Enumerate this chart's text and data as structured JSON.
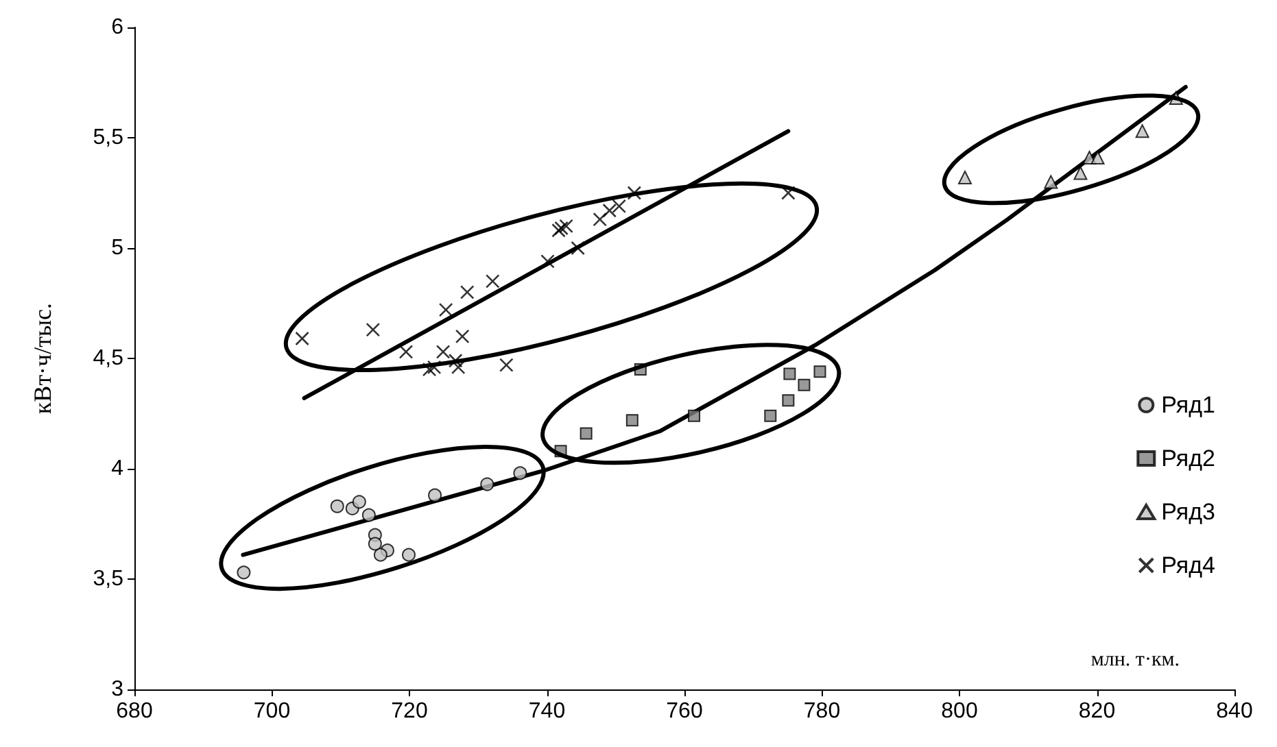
{
  "chart_data": {
    "type": "scatter",
    "xlabel": "млн. т·км.",
    "ylabel": "кВт·ч/тыс.",
    "xlim": [
      680,
      840
    ],
    "xticks": [
      680,
      700,
      720,
      740,
      760,
      780,
      800,
      820,
      840
    ],
    "ylim": [
      3,
      6
    ],
    "yticks": [
      3,
      {
        "value": 3.5,
        "label": "3,5"
      },
      4,
      {
        "value": 4.5,
        "label": "4,5"
      },
      5,
      {
        "value": 5.5,
        "label": "5,5"
      },
      6
    ],
    "grid": false,
    "legend": "right",
    "series": [
      {
        "name": "Ряд1",
        "color": "#c0c0c0",
        "marker": "circle",
        "x": [
          695.9,
          709.5,
          711.7,
          712.7,
          714.1,
          715.0,
          715.0,
          716.8,
          715.8,
          719.9,
          723.7,
          731.3,
          736.1
        ],
        "values": [
          3.53,
          3.83,
          3.82,
          3.85,
          3.79,
          3.7,
          3.66,
          3.63,
          3.61,
          3.61,
          3.88,
          3.93,
          3.98
        ]
      },
      {
        "name": "Ряд2",
        "color": "#808080",
        "marker": "square",
        "x": [
          742.0,
          745.7,
          752.4,
          753.6,
          761.4,
          772.5,
          775.1,
          775.3,
          777.4,
          779.7
        ],
        "values": [
          4.08,
          4.16,
          4.22,
          4.45,
          4.24,
          4.24,
          4.31,
          4.43,
          4.38,
          4.44
        ]
      },
      {
        "name": "Ряд3",
        "color": "#c0c0c0",
        "marker": "triangle",
        "x": [
          800.8,
          813.3,
          817.6,
          818.9,
          820.1,
          826.6,
          831.5
        ],
        "values": [
          5.32,
          5.3,
          5.34,
          5.41,
          5.41,
          5.53,
          5.68
        ]
      },
      {
        "name": "Ряд4",
        "color": "#000000",
        "marker": "cross",
        "x": [
          704.4,
          714.7,
          719.5,
          722.9,
          723.6,
          724.9,
          725.3,
          726.7,
          727.1,
          727.7,
          728.4,
          732.1,
          734.1,
          740.1,
          744.5,
          741.7,
          742.8,
          742.1,
          747.7,
          749.1,
          750.5,
          752.7,
          775.1
        ],
        "values": [
          4.59,
          4.63,
          4.53,
          4.45,
          4.46,
          4.53,
          4.72,
          4.49,
          4.46,
          4.6,
          4.8,
          4.85,
          4.47,
          4.94,
          5.0,
          5.08,
          5.1,
          5.09,
          5.13,
          5.17,
          5.19,
          5.25,
          5.25
        ]
      },
      {
        "type": "line",
        "color": "#000000",
        "marker": "none",
        "x": [
          695.8,
          739.4,
          756.4,
          779.0,
          796.4,
          807.0,
          832.9
        ],
        "values": [
          3.61,
          3.99,
          4.17,
          4.56,
          4.9,
          5.13,
          5.73
        ]
      },
      {
        "type": "line",
        "color": "#000000",
        "marker": "none",
        "x": [
          704.7,
          775.1
        ],
        "values": [
          4.32,
          5.53
        ]
      }
    ]
  }
}
